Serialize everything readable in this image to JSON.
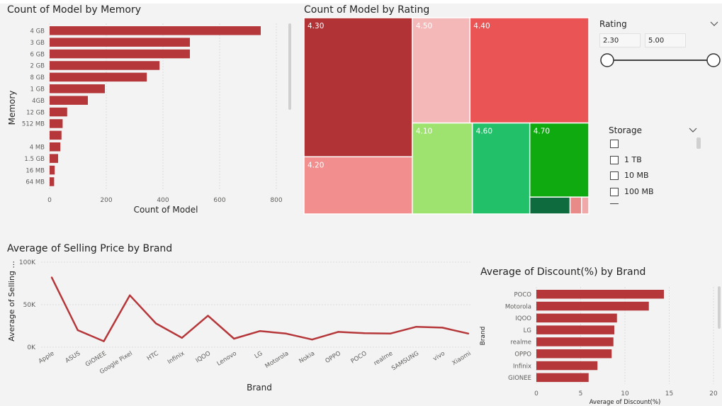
{
  "colors": {
    "bar": "#b5373a",
    "line": "#b5373a",
    "treemap": [
      "#b23335",
      "#f28e8e",
      "#f5b8b8",
      "#ea5455",
      "#9ee26f",
      "#22c069",
      "#0faa0f",
      "#0e6b3d",
      "#e88a88",
      "#f0a8a8"
    ]
  },
  "memory_chart": {
    "title": "Count of Model by Memory",
    "chart_data": {
      "type": "bar",
      "orientation": "horizontal",
      "title": "Count of Model by Memory",
      "xlabel": "Count of Model",
      "ylabel": "Memory",
      "categories": [
        "4 GB",
        "3 GB",
        "6 GB",
        "2 GB",
        "8 GB",
        "1 GB",
        "4GB",
        "12 GB",
        "512 MB",
        "",
        "4 MB",
        "1.5 GB",
        "16 MB",
        "64 MB"
      ],
      "values": [
        745,
        495,
        495,
        388,
        343,
        195,
        135,
        62,
        46,
        42,
        38,
        30,
        18,
        16
      ],
      "xlim": [
        0,
        820
      ],
      "xticks": [
        "0",
        "200",
        "400",
        "600",
        "800"
      ],
      "grid": true
    }
  },
  "rating_treemap": {
    "title": "Count of Model by Rating",
    "chart_data": {
      "type": "treemap",
      "title": "Count of Model by Rating",
      "labels": [
        "4.30",
        "4.20",
        "4.50",
        "4.40",
        "4.10",
        "4.60",
        "4.70",
        "",
        "",
        ""
      ],
      "values": [
        620,
        255,
        250,
        515,
        225,
        215,
        180,
        28,
        8,
        5
      ]
    }
  },
  "rating_slicer": {
    "title": "Rating",
    "min": "2.30",
    "max": "5.00"
  },
  "storage_slicer": {
    "title": "Storage",
    "items": [
      "",
      "1 TB",
      "10 MB",
      "100 MB"
    ]
  },
  "price_chart": {
    "title": "Average of Selling Price by Brand",
    "chart_data": {
      "type": "line",
      "title": "Average of Selling Price by Brand",
      "xlabel": "Brand",
      "ylabel": "Average of Selling ...",
      "categories": [
        "Apple",
        "ASUS",
        "GIONEE",
        "Google Pixel",
        "HTC",
        "Infinix",
        "IQOO",
        "Lenovo",
        "LG",
        "Motorola",
        "Nokia",
        "OPPO",
        "POCO",
        "realme",
        "SAMSUNG",
        "vivo",
        "Xiaomi"
      ],
      "values": [
        82000,
        20000,
        7000,
        61000,
        28000,
        11000,
        37000,
        10000,
        19000,
        16000,
        9000,
        18000,
        16500,
        16000,
        24000,
        23000,
        16000
      ],
      "ylim": [
        0,
        100000
      ],
      "yticks": [
        "0K",
        "50K",
        "100K"
      ],
      "grid": true
    }
  },
  "discount_chart": {
    "title": "Average of Discount(%) by Brand",
    "chart_data": {
      "type": "bar",
      "orientation": "horizontal",
      "title": "Average of Discount(%) by Brand",
      "xlabel": "Average of Discount(%)",
      "ylabel": "Brand",
      "categories": [
        "POCO",
        "Motorola",
        "IQOO",
        "LG",
        "realme",
        "OPPO",
        "Infinix",
        "GIONEE"
      ],
      "values": [
        14.4,
        12.7,
        9.1,
        8.8,
        8.7,
        8.5,
        6.9,
        5.9
      ],
      "xlim": [
        0,
        20
      ],
      "xticks": [
        "0",
        "5",
        "10",
        "15",
        "20"
      ],
      "grid": true
    }
  }
}
